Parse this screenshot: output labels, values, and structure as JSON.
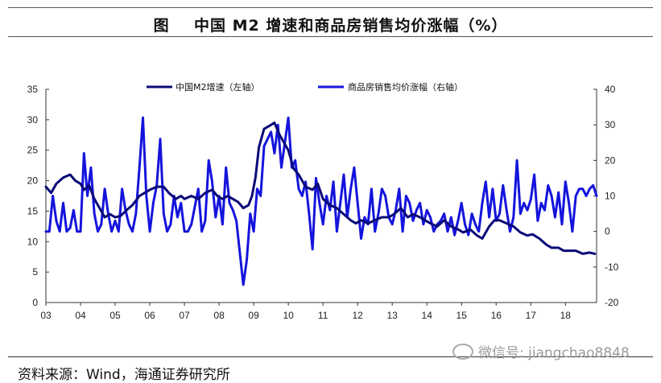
{
  "header": {
    "title": "图    中国 M2 增速和商品房销售均价涨幅（%）"
  },
  "footer": {
    "source": "资料来源：Wind，海通证券研究所",
    "watermark": "微信号: jiangchao8848"
  },
  "chart_data": {
    "type": "line",
    "x_tick_labels": [
      "03",
      "04",
      "05",
      "06",
      "07",
      "08",
      "09",
      "10",
      "11",
      "12",
      "13",
      "14",
      "15",
      "16",
      "17",
      "18"
    ],
    "x_range": [
      2003.0,
      2018.9
    ],
    "y_left": {
      "range": [
        0,
        35
      ],
      "ticks": [
        0,
        5,
        10,
        15,
        20,
        25,
        30,
        35
      ]
    },
    "y_right": {
      "range": [
        -20,
        40
      ],
      "ticks": [
        -20,
        -10,
        0,
        10,
        20,
        30,
        40
      ]
    },
    "legend_position": "top",
    "grid": false,
    "colors": {
      "m2": "#0a0a78",
      "price": "#1414dc"
    },
    "series": [
      {
        "name": "中国M2增速（左轴）",
        "axis": "left",
        "x": [
          2003.0,
          2003.15,
          2003.3,
          2003.5,
          2003.7,
          2003.85,
          2004.0,
          2004.1,
          2004.25,
          2004.4,
          2004.55,
          2004.7,
          2004.85,
          2005.0,
          2005.15,
          2005.3,
          2005.5,
          2005.7,
          2005.85,
          2006.0,
          2006.2,
          2006.4,
          2006.55,
          2006.75,
          2006.9,
          2007.0,
          2007.2,
          2007.4,
          2007.6,
          2007.8,
          2007.95,
          2008.1,
          2008.25,
          2008.4,
          2008.55,
          2008.7,
          2008.85,
          2008.95,
          2009.05,
          2009.15,
          2009.3,
          2009.45,
          2009.6,
          2009.75,
          2009.9,
          2010.0,
          2010.15,
          2010.3,
          2010.5,
          2010.7,
          2010.85,
          2011.0,
          2011.2,
          2011.4,
          2011.6,
          2011.8,
          2011.95,
          2012.1,
          2012.3,
          2012.5,
          2012.7,
          2012.9,
          2013.05,
          2013.25,
          2013.45,
          2013.6,
          2013.8,
          2013.95,
          2014.1,
          2014.3,
          2014.5,
          2014.7,
          2014.9,
          2015.05,
          2015.25,
          2015.45,
          2015.6,
          2015.8,
          2015.95,
          2016.1,
          2016.3,
          2016.5,
          2016.7,
          2016.9,
          2017.05,
          2017.25,
          2017.45,
          2017.6,
          2017.8,
          2017.95,
          2018.1,
          2018.3,
          2018.5,
          2018.7,
          2018.85
        ],
        "values": [
          19.0,
          18.0,
          19.5,
          20.5,
          21.0,
          20.0,
          19.5,
          18.5,
          19.2,
          17.0,
          15.5,
          14.0,
          14.5,
          14.0,
          14.2,
          15.0,
          16.0,
          17.5,
          18.0,
          18.5,
          19.0,
          19.0,
          18.0,
          17.0,
          17.5,
          17.0,
          17.5,
          17.0,
          18.0,
          18.5,
          17.5,
          17.0,
          17.5,
          17.0,
          16.5,
          15.5,
          16.0,
          17.5,
          20.5,
          25.5,
          28.5,
          29.0,
          29.5,
          27.5,
          26.0,
          25.0,
          22.0,
          21.0,
          19.0,
          18.5,
          19.5,
          17.0,
          16.0,
          15.5,
          14.5,
          13.5,
          13.0,
          13.5,
          13.0,
          13.5,
          14.0,
          14.0,
          14.5,
          15.5,
          14.0,
          14.5,
          14.0,
          13.5,
          13.0,
          12.5,
          13.5,
          12.5,
          12.0,
          11.5,
          12.0,
          11.0,
          10.5,
          12.5,
          13.5,
          13.5,
          13.0,
          12.5,
          11.5,
          11.0,
          11.2,
          10.5,
          9.5,
          9.0,
          9.0,
          8.5,
          8.5,
          8.5,
          8.0,
          8.2,
          8.0
        ]
      },
      {
        "name": "商品房销售均价涨幅（右轴）",
        "axis": "right",
        "x": [
          2003.0,
          2003.1,
          2003.2,
          2003.3,
          2003.4,
          2003.5,
          2003.6,
          2003.7,
          2003.8,
          2003.9,
          2004.0,
          2004.1,
          2004.2,
          2004.3,
          2004.4,
          2004.5,
          2004.6,
          2004.7,
          2004.8,
          2004.9,
          2005.0,
          2005.1,
          2005.2,
          2005.3,
          2005.4,
          2005.5,
          2005.6,
          2005.7,
          2005.8,
          2005.9,
          2006.0,
          2006.1,
          2006.2,
          2006.3,
          2006.4,
          2006.5,
          2006.6,
          2006.7,
          2006.8,
          2006.9,
          2007.0,
          2007.1,
          2007.2,
          2007.3,
          2007.4,
          2007.5,
          2007.6,
          2007.7,
          2007.8,
          2007.9,
          2008.0,
          2008.1,
          2008.2,
          2008.3,
          2008.4,
          2008.5,
          2008.6,
          2008.7,
          2008.8,
          2008.9,
          2009.0,
          2009.1,
          2009.2,
          2009.3,
          2009.4,
          2009.5,
          2009.6,
          2009.7,
          2009.8,
          2009.9,
          2010.0,
          2010.1,
          2010.2,
          2010.3,
          2010.4,
          2010.5,
          2010.6,
          2010.7,
          2010.8,
          2010.9,
          2011.0,
          2011.1,
          2011.2,
          2011.3,
          2011.4,
          2011.5,
          2011.6,
          2011.7,
          2011.8,
          2011.9,
          2012.0,
          2012.1,
          2012.2,
          2012.3,
          2012.4,
          2012.5,
          2012.6,
          2012.7,
          2012.8,
          2012.9,
          2013.0,
          2013.1,
          2013.2,
          2013.3,
          2013.4,
          2013.5,
          2013.6,
          2013.7,
          2013.8,
          2013.9,
          2014.0,
          2014.1,
          2014.2,
          2014.3,
          2014.4,
          2014.5,
          2014.6,
          2014.7,
          2014.8,
          2014.9,
          2015.0,
          2015.1,
          2015.2,
          2015.3,
          2015.4,
          2015.5,
          2015.6,
          2015.7,
          2015.8,
          2015.9,
          2016.0,
          2016.1,
          2016.2,
          2016.3,
          2016.4,
          2016.5,
          2016.6,
          2016.7,
          2016.8,
          2016.9,
          2017.0,
          2017.1,
          2017.2,
          2017.3,
          2017.4,
          2017.5,
          2017.6,
          2017.7,
          2017.8,
          2017.9,
          2018.0,
          2018.1,
          2018.2,
          2018.3,
          2018.4,
          2018.5,
          2018.6,
          2018.7,
          2018.8,
          2018.9
        ],
        "values": [
          0,
          0,
          10,
          3,
          0,
          8,
          0,
          1,
          6,
          0,
          0,
          22,
          10,
          18,
          5,
          0,
          2,
          12,
          5,
          0,
          3,
          0,
          12,
          6,
          2,
          0,
          5,
          18,
          32,
          10,
          0,
          8,
          13,
          26,
          5,
          0,
          2,
          10,
          4,
          8,
          0,
          0,
          2,
          7,
          12,
          0,
          3,
          20,
          14,
          4,
          10,
          2,
          18,
          8,
          6,
          3,
          -6,
          -15,
          -8,
          5,
          0,
          12,
          10,
          24,
          26,
          28,
          22,
          30,
          18,
          25,
          32,
          18,
          20,
          12,
          10,
          14,
          5,
          -5,
          15,
          8,
          2,
          10,
          6,
          14,
          0,
          8,
          16,
          4,
          12,
          18,
          8,
          -2,
          4,
          2,
          12,
          0,
          5,
          12,
          10,
          4,
          2,
          6,
          12,
          0,
          10,
          8,
          3,
          6,
          8,
          2,
          6,
          4,
          0,
          2,
          3,
          5,
          0,
          4,
          -1,
          3,
          8,
          2,
          -1,
          5,
          2,
          0,
          8,
          14,
          4,
          12,
          3,
          5,
          13,
          6,
          0,
          4,
          20,
          5,
          8,
          6,
          9,
          16,
          3,
          8,
          6,
          13,
          10,
          4,
          11,
          2,
          14,
          8,
          0,
          10,
          12,
          12,
          10,
          12,
          13,
          10
        ]
      }
    ]
  }
}
